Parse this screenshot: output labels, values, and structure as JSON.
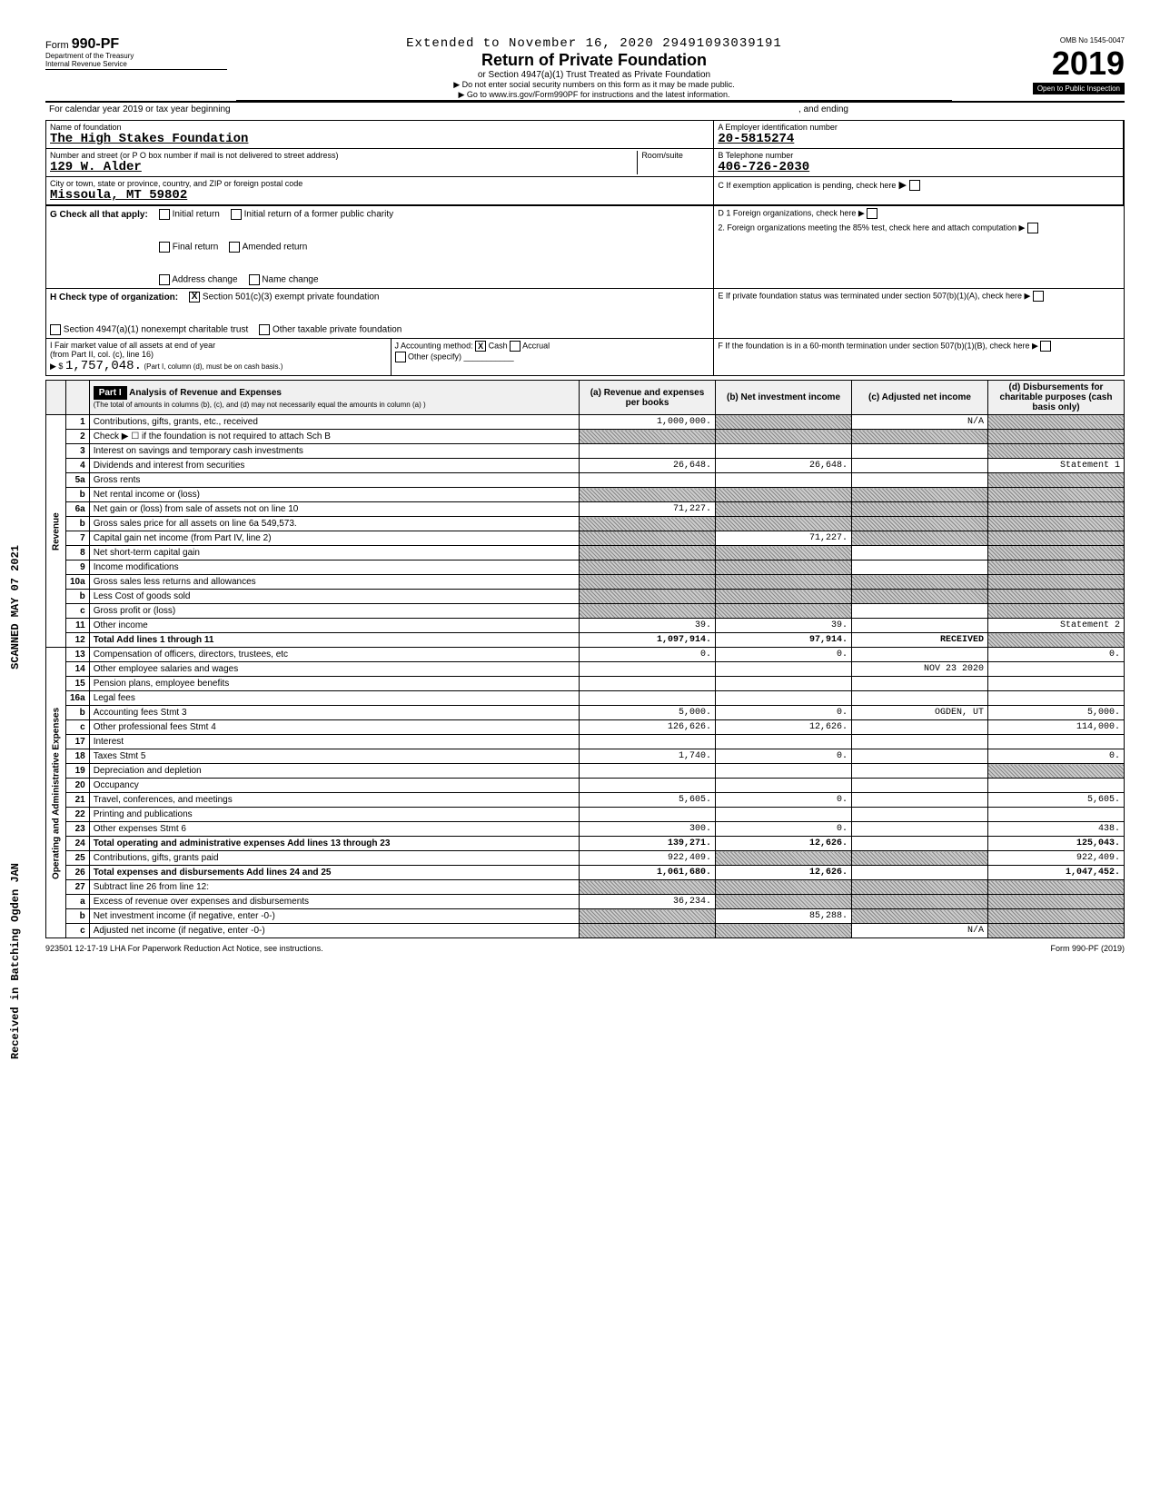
{
  "header": {
    "extension_line": "Extended to November 16, 2020",
    "doc_id": "29491093039191",
    "form_no": "990-PF",
    "form_word": "Form",
    "dept1": "Department of the Treasury",
    "dept2": "Internal Revenue Service",
    "title": "Return of Private Foundation",
    "subtitle": "or Section 4947(a)(1) Trust Treated as Private Foundation",
    "warn1": "▶ Do not enter social security numbers on this form as it may be made public.",
    "warn2": "▶ Go to www.irs.gov/Form990PF for instructions and the latest information.",
    "omb": "OMB No  1545-0047",
    "year": "2019",
    "inspection": "Open to Public Inspection",
    "cal_year": "For calendar year 2019 or tax year beginning",
    "and_ending": ", and ending"
  },
  "entity": {
    "name_label": "Name of foundation",
    "name": "The High Stakes Foundation",
    "addr_label": "Number and street (or P O  box number if mail is not delivered to street address)",
    "addr": "129 W. Alder",
    "city_label": "City or town, state or province, country, and ZIP or foreign postal code",
    "city": "Missoula, MT   59802",
    "room_label": "Room/suite",
    "ein_label": "A  Employer identification number",
    "ein": "20-5815274",
    "phone_label": "B  Telephone number",
    "phone": "406-726-2030",
    "c_label": "C  If exemption application is pending, check here"
  },
  "boxG": {
    "label": "G  Check all that apply:",
    "opts": [
      "Initial return",
      "Final return",
      "Address change",
      "Initial return of a former public charity",
      "Amended return",
      "Name change"
    ]
  },
  "boxD": {
    "d1": "D  1  Foreign organizations, check here",
    "d2": "2.  Foreign organizations meeting the 85% test, check here and attach computation"
  },
  "boxH": {
    "label": "H  Check type of organization:",
    "opt1": "Section 501(c)(3) exempt private foundation",
    "opt2": "Section 4947(a)(1) nonexempt charitable trust",
    "opt3": "Other taxable private foundation"
  },
  "boxE": {
    "e1": "E  If private foundation status was terminated under section 507(b)(1)(A), check here",
    "f1": "F  If the foundation is in a 60-month termination under section 507(b)(1)(B), check here"
  },
  "boxI": {
    "label": "I  Fair market value of all assets at end of year",
    "from": "(from Part II, col. (c), line 16)",
    "arrow": "▶ $",
    "value": "1,757,048.",
    "j_label": "J  Accounting method:",
    "j_cash": "Cash",
    "j_accrual": "Accrual",
    "j_other": "Other (specify)",
    "j_note": "(Part I, column (d), must be on cash basis.)"
  },
  "part1": {
    "label": "Part I",
    "title": "Analysis of Revenue and Expenses",
    "subtitle": "(The total of amounts in columns (b), (c), and (d) may not necessarily equal the amounts in column (a) )",
    "col_a": "(a) Revenue and expenses per books",
    "col_b": "(b) Net investment income",
    "col_c": "(c) Adjusted net income",
    "col_d": "(d) Disbursements for charitable purposes (cash basis only)",
    "side_revenue": "Revenue",
    "side_expenses": "Operating and Administrative Expenses"
  },
  "rows": [
    {
      "n": "1",
      "desc": "Contributions, gifts, grants, etc., received",
      "a": "1,000,000.",
      "b": "",
      "c": "N/A",
      "d": "",
      "a_shade": false,
      "b_shade": true,
      "c_shade": false,
      "d_shade": true
    },
    {
      "n": "2",
      "desc": "Check ▶ ☐ if the foundation is not required to attach Sch  B",
      "a": "",
      "b": "",
      "c": "",
      "d": "",
      "a_shade": true,
      "b_shade": true,
      "c_shade": true,
      "d_shade": true
    },
    {
      "n": "3",
      "desc": "Interest on savings and temporary cash investments",
      "a": "",
      "b": "",
      "c": "",
      "d": "",
      "a_shade": false,
      "b_shade": false,
      "c_shade": false,
      "d_shade": true
    },
    {
      "n": "4",
      "desc": "Dividends and interest from securities",
      "a": "26,648.",
      "b": "26,648.",
      "c": "",
      "d": "Statement 1",
      "a_shade": false,
      "b_shade": false,
      "c_shade": false,
      "d_shade": false
    },
    {
      "n": "5a",
      "desc": "Gross rents",
      "a": "",
      "b": "",
      "c": "",
      "d": "",
      "a_shade": false,
      "b_shade": false,
      "c_shade": false,
      "d_shade": true
    },
    {
      "n": "b",
      "desc": "Net rental income or (loss)",
      "a": "",
      "b": "",
      "c": "",
      "d": "",
      "a_shade": true,
      "b_shade": true,
      "c_shade": true,
      "d_shade": true
    },
    {
      "n": "6a",
      "desc": "Net gain or (loss) from sale of assets not on line 10",
      "a": "71,227.",
      "b": "",
      "c": "",
      "d": "",
      "a_shade": false,
      "b_shade": true,
      "c_shade": true,
      "d_shade": true
    },
    {
      "n": "b",
      "desc": "Gross sales price for all assets on line 6a     549,573.",
      "a": "",
      "b": "",
      "c": "",
      "d": "",
      "a_shade": true,
      "b_shade": true,
      "c_shade": true,
      "d_shade": true
    },
    {
      "n": "7",
      "desc": "Capital gain net income (from Part IV, line 2)",
      "a": "",
      "b": "71,227.",
      "c": "",
      "d": "",
      "a_shade": true,
      "b_shade": false,
      "c_shade": true,
      "d_shade": true
    },
    {
      "n": "8",
      "desc": "Net short-term capital gain",
      "a": "",
      "b": "",
      "c": "",
      "d": "",
      "a_shade": true,
      "b_shade": true,
      "c_shade": false,
      "d_shade": true
    },
    {
      "n": "9",
      "desc": "Income modifications",
      "a": "",
      "b": "",
      "c": "",
      "d": "",
      "a_shade": true,
      "b_shade": true,
      "c_shade": false,
      "d_shade": true
    },
    {
      "n": "10a",
      "desc": "Gross sales less returns and allowances",
      "a": "",
      "b": "",
      "c": "",
      "d": "",
      "a_shade": true,
      "b_shade": true,
      "c_shade": true,
      "d_shade": true
    },
    {
      "n": "b",
      "desc": "Less  Cost of goods sold",
      "a": "",
      "b": "",
      "c": "",
      "d": "",
      "a_shade": true,
      "b_shade": true,
      "c_shade": true,
      "d_shade": true
    },
    {
      "n": "c",
      "desc": "Gross profit or (loss)",
      "a": "",
      "b": "",
      "c": "",
      "d": "",
      "a_shade": true,
      "b_shade": true,
      "c_shade": false,
      "d_shade": true
    },
    {
      "n": "11",
      "desc": "Other income",
      "a": "39.",
      "b": "39.",
      "c": "",
      "d": "Statement 2",
      "a_shade": false,
      "b_shade": false,
      "c_shade": false,
      "d_shade": false
    },
    {
      "n": "12",
      "desc": "Total  Add lines 1 through 11",
      "a": "1,097,914.",
      "b": "97,914.",
      "c": "RECEIVED",
      "d": "",
      "a_shade": false,
      "b_shade": false,
      "c_shade": false,
      "d_shade": true,
      "bold": true
    },
    {
      "n": "13",
      "desc": "Compensation of officers, directors, trustees, etc",
      "a": "0.",
      "b": "0.",
      "c": "",
      "d": "0.",
      "a_shade": false,
      "b_shade": false,
      "c_shade": false,
      "d_shade": false
    },
    {
      "n": "14",
      "desc": "Other employee salaries and wages",
      "a": "",
      "b": "",
      "c": "NOV 23 2020",
      "d": "",
      "a_shade": false,
      "b_shade": false,
      "c_shade": false,
      "d_shade": false
    },
    {
      "n": "15",
      "desc": "Pension plans, employee benefits",
      "a": "",
      "b": "",
      "c": "",
      "d": "",
      "a_shade": false,
      "b_shade": false,
      "c_shade": false,
      "d_shade": false
    },
    {
      "n": "16a",
      "desc": "Legal fees",
      "a": "",
      "b": "",
      "c": "",
      "d": "",
      "a_shade": false,
      "b_shade": false,
      "c_shade": false,
      "d_shade": false
    },
    {
      "n": "b",
      "desc": "Accounting fees                    Stmt  3",
      "a": "5,000.",
      "b": "0.",
      "c": "OGDEN, UT",
      "d": "5,000.",
      "a_shade": false,
      "b_shade": false,
      "c_shade": false,
      "d_shade": false
    },
    {
      "n": "c",
      "desc": "Other professional fees            Stmt  4",
      "a": "126,626.",
      "b": "12,626.",
      "c": "",
      "d": "114,000.",
      "a_shade": false,
      "b_shade": false,
      "c_shade": false,
      "d_shade": false
    },
    {
      "n": "17",
      "desc": "Interest",
      "a": "",
      "b": "",
      "c": "",
      "d": "",
      "a_shade": false,
      "b_shade": false,
      "c_shade": false,
      "d_shade": false
    },
    {
      "n": "18",
      "desc": "Taxes                              Stmt  5",
      "a": "1,740.",
      "b": "0.",
      "c": "",
      "d": "0.",
      "a_shade": false,
      "b_shade": false,
      "c_shade": false,
      "d_shade": false
    },
    {
      "n": "19",
      "desc": "Depreciation and depletion",
      "a": "",
      "b": "",
      "c": "",
      "d": "",
      "a_shade": false,
      "b_shade": false,
      "c_shade": false,
      "d_shade": true
    },
    {
      "n": "20",
      "desc": "Occupancy",
      "a": "",
      "b": "",
      "c": "",
      "d": "",
      "a_shade": false,
      "b_shade": false,
      "c_shade": false,
      "d_shade": false
    },
    {
      "n": "21",
      "desc": "Travel, conferences, and meetings",
      "a": "5,605.",
      "b": "0.",
      "c": "",
      "d": "5,605.",
      "a_shade": false,
      "b_shade": false,
      "c_shade": false,
      "d_shade": false
    },
    {
      "n": "22",
      "desc": "Printing and publications",
      "a": "",
      "b": "",
      "c": "",
      "d": "",
      "a_shade": false,
      "b_shade": false,
      "c_shade": false,
      "d_shade": false
    },
    {
      "n": "23",
      "desc": "Other expenses                     Stmt  6",
      "a": "300.",
      "b": "0.",
      "c": "",
      "d": "438.",
      "a_shade": false,
      "b_shade": false,
      "c_shade": false,
      "d_shade": false
    },
    {
      "n": "24",
      "desc": "Total operating and administrative expenses  Add lines 13 through 23",
      "a": "139,271.",
      "b": "12,626.",
      "c": "",
      "d": "125,043.",
      "a_shade": false,
      "b_shade": false,
      "c_shade": false,
      "d_shade": false,
      "bold": true
    },
    {
      "n": "25",
      "desc": "Contributions, gifts, grants paid",
      "a": "922,409.",
      "b": "",
      "c": "",
      "d": "922,409.",
      "a_shade": false,
      "b_shade": true,
      "c_shade": true,
      "d_shade": false
    },
    {
      "n": "26",
      "desc": "Total expenses and disbursements Add lines 24 and 25",
      "a": "1,061,680.",
      "b": "12,626.",
      "c": "",
      "d": "1,047,452.",
      "a_shade": false,
      "b_shade": false,
      "c_shade": false,
      "d_shade": false,
      "bold": true
    },
    {
      "n": "27",
      "desc": "Subtract line 26 from line 12:",
      "a": "",
      "b": "",
      "c": "",
      "d": "",
      "a_shade": true,
      "b_shade": true,
      "c_shade": true,
      "d_shade": true
    },
    {
      "n": "a",
      "desc": "Excess of revenue over expenses and disbursements",
      "a": "36,234.",
      "b": "",
      "c": "",
      "d": "",
      "a_shade": false,
      "b_shade": true,
      "c_shade": true,
      "d_shade": true
    },
    {
      "n": "b",
      "desc": "Net investment income (if negative, enter -0-)",
      "a": "",
      "b": "85,288.",
      "c": "",
      "d": "",
      "a_shade": true,
      "b_shade": false,
      "c_shade": true,
      "d_shade": true
    },
    {
      "n": "c",
      "desc": "Adjusted net income (if negative, enter -0-)",
      "a": "",
      "b": "",
      "c": "N/A",
      "d": "",
      "a_shade": true,
      "b_shade": true,
      "c_shade": false,
      "d_shade": true
    }
  ],
  "footer": {
    "left": "923501  12-17-19   LHA   For Paperwork Reduction Act Notice, see instructions.",
    "right": "Form 990-PF (2019)"
  },
  "stamps": {
    "scanned": "SCANNED MAY 07 2021",
    "received": "Received in Batching Ogden   JAN"
  }
}
